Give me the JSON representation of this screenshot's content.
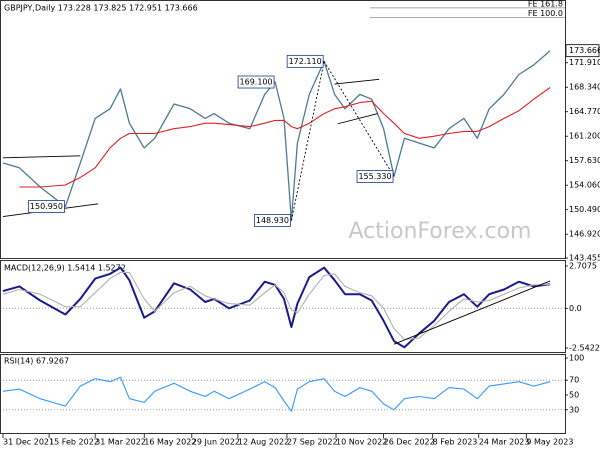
{
  "chart_data": [
    {
      "type": "line",
      "title": "GBPJPY,Daily  173.228 173.825 172.951 173.666",
      "watermark": "ActionForex.com",
      "xlim": [
        0,
        378
      ],
      "ylim": [
        143.455,
        180.906
      ],
      "yticks": [
        {
          "value": 143.455,
          "label": "143.455"
        },
        {
          "value": 146.92,
          "label": "146.920"
        },
        {
          "value": 150.49,
          "label": "150.490"
        },
        {
          "value": 154.06,
          "label": "154.060"
        },
        {
          "value": 157.63,
          "label": "157.630"
        },
        {
          "value": 161.2,
          "label": "161.200"
        },
        {
          "value": 164.77,
          "label": "164.770"
        },
        {
          "value": 168.34,
          "label": "168.340"
        },
        {
          "value": 171.91,
          "label": "171.910"
        }
      ],
      "current_price": {
        "value": 173.666,
        "label": "173.666"
      },
      "x": [
        0,
        11,
        25,
        42,
        52,
        62,
        72,
        79,
        85,
        95,
        102,
        115,
        126,
        136,
        142,
        152,
        166,
        176,
        183,
        189,
        194,
        198,
        206,
        216,
        223,
        230,
        240,
        248,
        256,
        263,
        270,
        280,
        290,
        300,
        310,
        319,
        327,
        337,
        347,
        357,
        368
      ],
      "series": [
        {
          "name": "GBPJPY",
          "color": "#4d7a94",
          "values": [
            157.3,
            156.6,
            153.8,
            150.95,
            157.3,
            163.8,
            165.2,
            168.1,
            163.1,
            159.5,
            160.9,
            165.9,
            165.2,
            163.8,
            164.5,
            163.1,
            162.3,
            167.3,
            169.1,
            163.8,
            148.93,
            160.2,
            167.3,
            172.11,
            167.3,
            165.2,
            167.3,
            166.6,
            162.3,
            155.33,
            160.9,
            160.2,
            159.5,
            162.3,
            163.8,
            160.9,
            165.2,
            167.3,
            170.2,
            171.6,
            173.666
          ]
        },
        {
          "name": "MA",
          "color": "#e02020",
          "values": [
            null,
            153.8,
            153.8,
            154.1,
            155.2,
            156.6,
            159.5,
            160.9,
            161.6,
            161.6,
            161.6,
            162.3,
            162.6,
            163.1,
            163.1,
            162.9,
            162.6,
            163.1,
            163.5,
            163.5,
            162.6,
            162.3,
            163.1,
            164.5,
            165.2,
            165.5,
            166.1,
            166.3,
            164.5,
            163.1,
            161.6,
            160.9,
            161.2,
            161.6,
            161.9,
            161.9,
            162.6,
            163.8,
            164.9,
            166.6,
            168.3
          ]
        }
      ],
      "annotations": [
        {
          "x": 42,
          "value": 150.95,
          "label": "150.950"
        },
        {
          "x": 183,
          "value": 169.1,
          "label": "169.100"
        },
        {
          "x": 216,
          "value": 172.11,
          "label": "172.110"
        },
        {
          "x": 194,
          "value": 148.93,
          "label": "148.930"
        },
        {
          "x": 263,
          "value": 155.33,
          "label": "155.330"
        }
      ],
      "levels": [
        {
          "value": 179.9,
          "label": "FE 161.8"
        },
        {
          "value": 178.48,
          "label": "FE 100.0"
        }
      ],
      "trendlines": [
        [
          [
            0,
            158.06
          ],
          [
            52,
            158.35
          ]
        ],
        [
          [
            0,
            149.5
          ],
          [
            64,
            151.35
          ]
        ],
        [
          [
            223,
            168.8
          ],
          [
            253,
            169.5
          ]
        ],
        [
          [
            225,
            163.0
          ],
          [
            252,
            164.5
          ]
        ]
      ],
      "dotted_lines": [
        [
          [
            194,
            148.93
          ],
          [
            216,
            172.11
          ]
        ],
        [
          [
            216,
            172.11
          ],
          [
            263,
            155.33
          ]
        ]
      ]
    },
    {
      "type": "line",
      "title": "MACD(12,26,9) 1.5414 1.5272",
      "xlim": [
        0,
        378
      ],
      "ylim": [
        -2.5422,
        2.7075
      ],
      "yticks": [
        -2.5422,
        {
          "value": 0,
          "label": "0.0"
        },
        2.7075
      ],
      "zero_line": 0,
      "x": [
        0,
        11,
        25,
        42,
        52,
        62,
        72,
        79,
        85,
        95,
        102,
        115,
        126,
        136,
        142,
        152,
        166,
        176,
        183,
        189,
        194,
        198,
        206,
        216,
        223,
        230,
        240,
        248,
        256,
        263,
        270,
        280,
        290,
        300,
        310,
        319,
        327,
        337,
        347,
        357,
        368
      ],
      "series": [
        {
          "name": "MACD",
          "color": "#1a1a8c",
          "values": [
            1.1,
            1.4,
            0.5,
            -0.4,
            0.6,
            1.9,
            2.2,
            2.6,
            1.8,
            -0.6,
            -0.2,
            1.6,
            1.2,
            0.4,
            0.6,
            0.0,
            0.5,
            1.7,
            1.5,
            0.6,
            -1.2,
            0.3,
            2.0,
            2.6,
            1.8,
            0.9,
            0.9,
            0.5,
            -0.8,
            -2.1,
            -2.5,
            -1.6,
            -0.8,
            0.4,
            0.9,
            0.1,
            0.9,
            1.2,
            1.7,
            1.4,
            1.5414
          ]
        },
        {
          "name": "Signal",
          "color": "#b0b0b0",
          "values": [
            0.9,
            1.2,
            0.9,
            0.1,
            0.1,
            1.0,
            1.9,
            2.3,
            2.3,
            0.6,
            -0.2,
            1.0,
            1.4,
            0.8,
            0.6,
            0.3,
            0.2,
            1.0,
            1.5,
            1.0,
            -0.1,
            -0.3,
            0.9,
            2.1,
            2.2,
            1.4,
            1.0,
            0.8,
            0.0,
            -1.3,
            -2.0,
            -1.9,
            -1.1,
            -0.2,
            0.6,
            0.4,
            0.5,
            0.9,
            1.3,
            1.5,
            1.5272
          ]
        }
      ],
      "trendlines": [
        [
          [
            263,
            -2.3
          ],
          [
            368,
            1.75
          ]
        ]
      ]
    },
    {
      "type": "line",
      "title": "RSI(14) 67.9267",
      "xlim": [
        0,
        378
      ],
      "ylim": [
        0,
        100
      ],
      "yticks": [
        30,
        50,
        70,
        100
      ],
      "dotted_levels": [
        30,
        70
      ],
      "xticks": [
        {
          "value": 0,
          "label": "31 Dec 2021"
        },
        {
          "value": 31,
          "label": "15 Feb 2022"
        },
        {
          "value": 62,
          "label": "31 Mar 2022"
        },
        {
          "value": 95,
          "label": "16 May 2022"
        },
        {
          "value": 127,
          "label": "29 Jun 2022"
        },
        {
          "value": 158,
          "label": "12 Aug 2022"
        },
        {
          "value": 191,
          "label": "27 Sep 2022"
        },
        {
          "value": 224,
          "label": "10 Nov 2022"
        },
        {
          "value": 256,
          "label": "26 Dec 2022"
        },
        {
          "value": 289,
          "label": "8 Feb 2023"
        },
        {
          "value": 320,
          "label": "24 Mar 2023"
        },
        {
          "value": 352,
          "label": "9 May 2023"
        }
      ],
      "x": [
        0,
        11,
        25,
        42,
        52,
        62,
        72,
        79,
        85,
        95,
        102,
        115,
        126,
        136,
        142,
        152,
        166,
        176,
        183,
        189,
        194,
        198,
        206,
        216,
        223,
        230,
        240,
        248,
        256,
        263,
        270,
        280,
        290,
        300,
        310,
        319,
        327,
        337,
        347,
        357,
        368
      ],
      "series": [
        {
          "name": "RSI",
          "color": "#3399ff",
          "values": [
            55,
            58,
            45,
            35,
            62,
            72,
            68,
            74,
            45,
            40,
            55,
            66,
            55,
            48,
            55,
            45,
            58,
            68,
            60,
            42,
            28,
            58,
            68,
            72,
            55,
            48,
            60,
            55,
            38,
            30,
            45,
            48,
            45,
            60,
            58,
            45,
            62,
            65,
            68,
            62,
            67.9267
          ]
        }
      ]
    }
  ]
}
